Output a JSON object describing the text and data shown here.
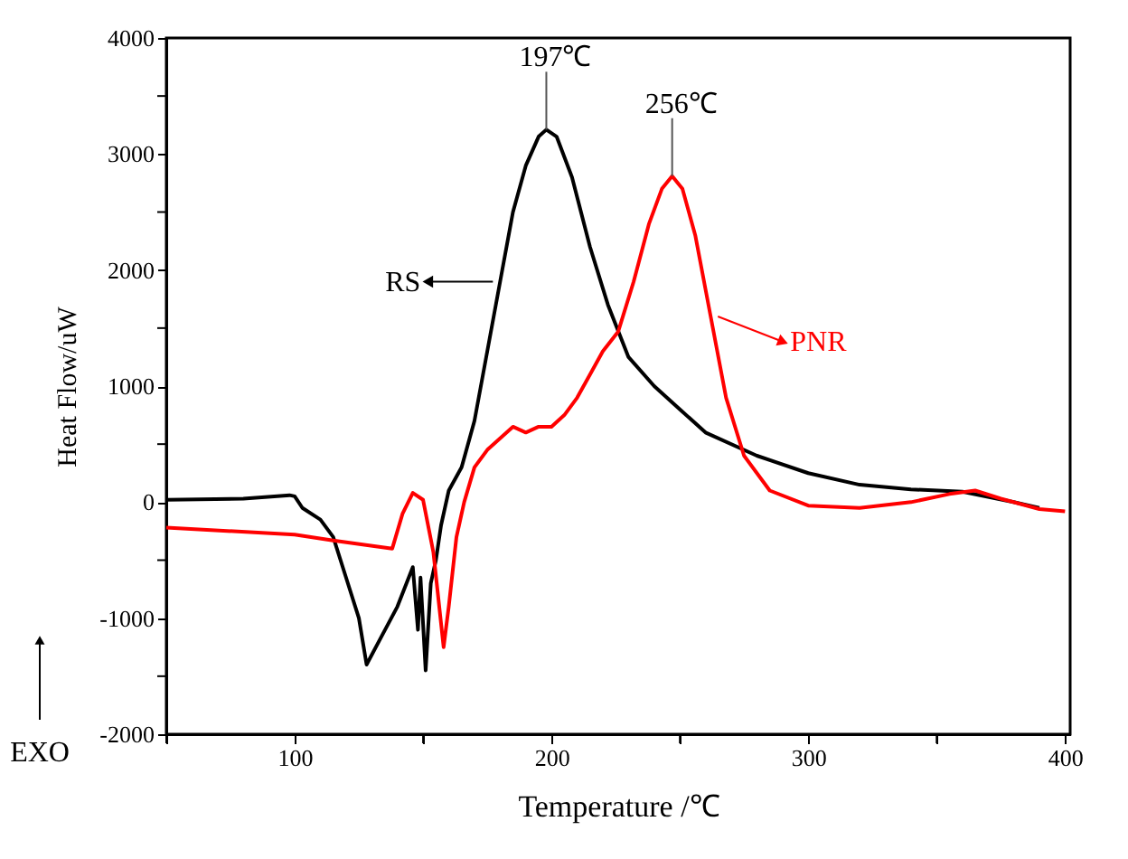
{
  "chart_data": {
    "type": "line",
    "xlabel": "Temperature /℃",
    "ylabel": "Heat Flow/uW",
    "xlim": [
      50,
      402
    ],
    "ylim": [
      -2000,
      4000
    ],
    "xticks": [
      {
        "value": 50,
        "label": null
      },
      100,
      {
        "value": 150,
        "label": null
      },
      200,
      {
        "value": 250,
        "label": null
      },
      300,
      {
        "value": 350,
        "label": null
      },
      400
    ],
    "yticks": [
      -2000,
      {
        "value": -1500,
        "label": null
      },
      -1000,
      {
        "value": -500,
        "label": null
      },
      0,
      {
        "value": 500,
        "label": null
      },
      1000,
      {
        "value": 1500,
        "label": null
      },
      2000,
      {
        "value": 2500,
        "label": null
      },
      3000,
      {
        "value": 3500,
        "label": null
      },
      4000
    ],
    "grid": false,
    "marker": "none",
    "line_style": "solid",
    "series": [
      {
        "name": "RS",
        "color": "#000000",
        "x": [
          50,
          80,
          98,
          100,
          103,
          110,
          115,
          120,
          125,
          128,
          134,
          140,
          146,
          148,
          149,
          151,
          153,
          155,
          157,
          160,
          165,
          170,
          175,
          180,
          185,
          190,
          195,
          198,
          202,
          208,
          215,
          222,
          230,
          240,
          250,
          260,
          280,
          300,
          320,
          340,
          360,
          380,
          390
        ],
        "values": [
          20,
          30,
          60,
          50,
          -50,
          -150,
          -300,
          -650,
          -1000,
          -1400,
          -1150,
          -900,
          -560,
          -1100,
          -650,
          -1450,
          -700,
          -500,
          -200,
          100,
          300,
          700,
          1300,
          1900,
          2500,
          2900,
          3150,
          3210,
          3150,
          2800,
          2200,
          1700,
          1250,
          1000,
          800,
          600,
          400,
          250,
          150,
          110,
          90,
          0,
          -50
        ]
      },
      {
        "name": "PNR",
        "color": "#ff0000",
        "x": [
          50,
          100,
          115,
          138,
          142,
          146,
          150,
          154,
          158,
          160,
          163,
          166,
          170,
          175,
          180,
          185,
          190,
          195,
          200,
          205,
          210,
          215,
          220,
          226,
          232,
          238,
          243,
          247,
          251,
          256,
          262,
          268,
          275,
          285,
          300,
          320,
          340,
          355,
          365,
          375,
          390,
          400
        ],
        "values": [
          -220,
          -280,
          -330,
          -400,
          -100,
          80,
          20,
          -430,
          -1250,
          -900,
          -300,
          0,
          300,
          450,
          550,
          650,
          600,
          650,
          650,
          750,
          900,
          1100,
          1300,
          1470,
          1900,
          2400,
          2700,
          2810,
          2700,
          2300,
          1600,
          900,
          400,
          100,
          -30,
          -50,
          0,
          70,
          100,
          30,
          -60,
          -80
        ]
      }
    ],
    "annotations": [
      {
        "text": "197℃",
        "x": 198,
        "y": 3210
      },
      {
        "text": "256℃",
        "x": 247,
        "y": 2810
      },
      "EXO"
    ]
  }
}
